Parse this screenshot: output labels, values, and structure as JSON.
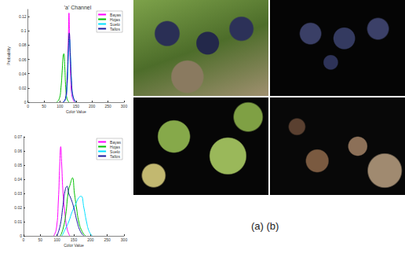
{
  "chart_data": [
    {
      "type": "line",
      "title": "'a' Channel",
      "x_label": "Color Value",
      "y_label": "Probability",
      "xlim": [
        0,
        300
      ],
      "xticks": [
        0,
        50,
        100,
        150,
        200,
        250,
        300
      ],
      "ylim": [
        0,
        0.13
      ],
      "yticks": [
        0,
        0.02,
        0.04,
        0.06,
        0.08,
        0.1,
        0.12
      ],
      "legend": "upper right",
      "series": [
        {
          "name": "Bayas",
          "color": "#ff00ff",
          "x": [
            110,
            118,
            122,
            125,
            127,
            128,
            130,
            133,
            137,
            145
          ],
          "values": [
            0,
            0.005,
            0.02,
            0.06,
            0.11,
            0.125,
            0.09,
            0.04,
            0.01,
            0
          ]
        },
        {
          "name": "Hojas",
          "color": "#00c000",
          "x": [
            90,
            98,
            103,
            107,
            110,
            112,
            115,
            118,
            122,
            128
          ],
          "values": [
            0,
            0.005,
            0.02,
            0.045,
            0.065,
            0.068,
            0.05,
            0.02,
            0.005,
            0
          ]
        },
        {
          "name": "Suelo",
          "color": "#00e0ff",
          "x": [
            110,
            118,
            123,
            127,
            130,
            133,
            137,
            142,
            150
          ],
          "values": [
            0,
            0.005,
            0.03,
            0.07,
            0.088,
            0.06,
            0.02,
            0.005,
            0
          ]
        },
        {
          "name": "Tallos",
          "color": "#1a1aa0",
          "x": [
            110,
            117,
            122,
            126,
            129,
            132,
            136,
            141,
            150
          ],
          "values": [
            0,
            0.005,
            0.03,
            0.075,
            0.097,
            0.07,
            0.03,
            0.008,
            0
          ]
        }
      ]
    },
    {
      "type": "line",
      "x_label": "Color Value",
      "xlim": [
        0,
        300
      ],
      "xticks": [
        0,
        50,
        100,
        150,
        200,
        250,
        300
      ],
      "ylim": [
        0,
        0.07
      ],
      "yticks": [
        0,
        0.01,
        0.02,
        0.03,
        0.04,
        0.05,
        0.06,
        0.07
      ],
      "legend": "upper right",
      "series": [
        {
          "name": "Bayas",
          "color": "#ff00ff",
          "x": [
            90,
            98,
            104,
            108,
            111,
            114,
            118,
            124,
            130,
            138
          ],
          "values": [
            0,
            0.005,
            0.025,
            0.05,
            0.063,
            0.05,
            0.03,
            0.015,
            0.005,
            0
          ]
        },
        {
          "name": "Hojas",
          "color": "#00c000",
          "x": [
            110,
            118,
            126,
            133,
            140,
            146,
            152,
            158,
            165,
            175,
            185
          ],
          "values": [
            0,
            0.005,
            0.015,
            0.03,
            0.037,
            0.041,
            0.03,
            0.02,
            0.01,
            0.003,
            0
          ]
        },
        {
          "name": "Suelo",
          "color": "#00e0ff",
          "x": [
            115,
            125,
            135,
            145,
            155,
            165,
            172,
            180,
            188,
            196,
            205
          ],
          "values": [
            0,
            0.005,
            0.01,
            0.017,
            0.022,
            0.027,
            0.028,
            0.02,
            0.01,
            0.003,
            0
          ]
        },
        {
          "name": "Tallos",
          "color": "#1a1aa0",
          "x": [
            100,
            110,
            118,
            125,
            130,
            135,
            142,
            150,
            160,
            170,
            180
          ],
          "values": [
            0,
            0.008,
            0.022,
            0.033,
            0.035,
            0.03,
            0.026,
            0.02,
            0.01,
            0.003,
            0
          ]
        }
      ]
    }
  ],
  "caption": "(a) (b)"
}
